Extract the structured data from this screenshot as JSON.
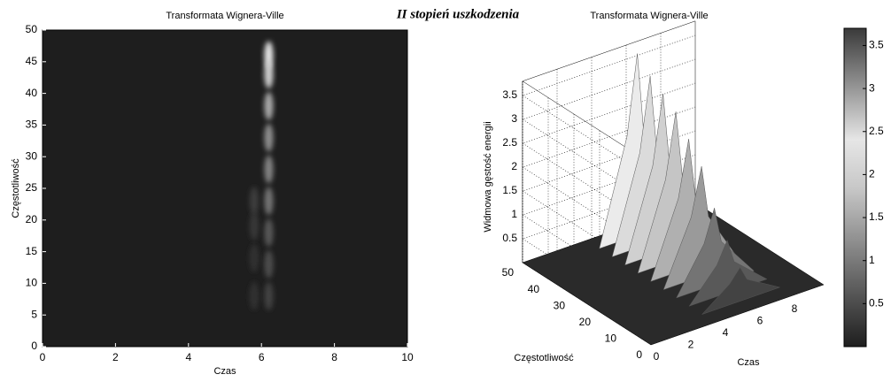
{
  "title": "II stopień uszkodzenia",
  "chart_data": [
    {
      "type": "heatmap",
      "title": "Transformata Wignera-Ville",
      "x_label": "Czas",
      "y_label": "Częstotliwość",
      "x": [
        6.2,
        6.2,
        6.2,
        6.2,
        6.2,
        6.2,
        6.2,
        6.2,
        6.2,
        5.8,
        5.8,
        5.8,
        5.8
      ],
      "y": [
        46,
        43,
        38,
        33,
        28,
        23,
        18,
        13,
        8,
        23,
        19,
        14,
        8
      ],
      "values": [
        3.6,
        3.2,
        2.5,
        2,
        1.8,
        1.5,
        1,
        0.8,
        0.6,
        0.5,
        0.4,
        0.3,
        0.3
      ],
      "clim": [
        0,
        3.7
      ],
      "xlim": [
        0,
        10
      ],
      "xticks": [
        0,
        2,
        4,
        6,
        8,
        10
      ],
      "ylim": [
        0,
        50
      ],
      "yticks": [
        0,
        5,
        10,
        15,
        20,
        25,
        30,
        35,
        40,
        45,
        50
      ]
    },
    {
      "type": "surface3d",
      "title": "Transformata Wignera-Ville",
      "x_label": "Czas",
      "y_label": "Częstotliwość",
      "z_label": "Widmowa gęstość energii",
      "x": [
        6.2,
        6.2,
        6.2,
        6.2,
        6.2,
        6.2,
        6.2,
        6.2,
        6.2
      ],
      "y": [
        47,
        42,
        37,
        32,
        27,
        22,
        17,
        12,
        7
      ],
      "values": [
        3.7,
        3.4,
        3.2,
        3.0,
        2.6,
        2.2,
        1.5,
        1.0,
        0.6
      ],
      "xlim": [
        0,
        10
      ],
      "xticks": [
        0,
        2,
        4,
        6,
        8
      ],
      "ylim": [
        0,
        50
      ],
      "yticks": [
        0,
        10,
        20,
        30,
        40,
        50
      ],
      "zlim": [
        0,
        3.8
      ],
      "zticks": [
        0.5,
        1,
        1.5,
        2,
        2.5,
        3,
        3.5
      ],
      "clim": [
        0,
        3.7
      ],
      "cticks": [
        0.5,
        1,
        1.5,
        2,
        2.5,
        3,
        3.5
      ]
    }
  ]
}
